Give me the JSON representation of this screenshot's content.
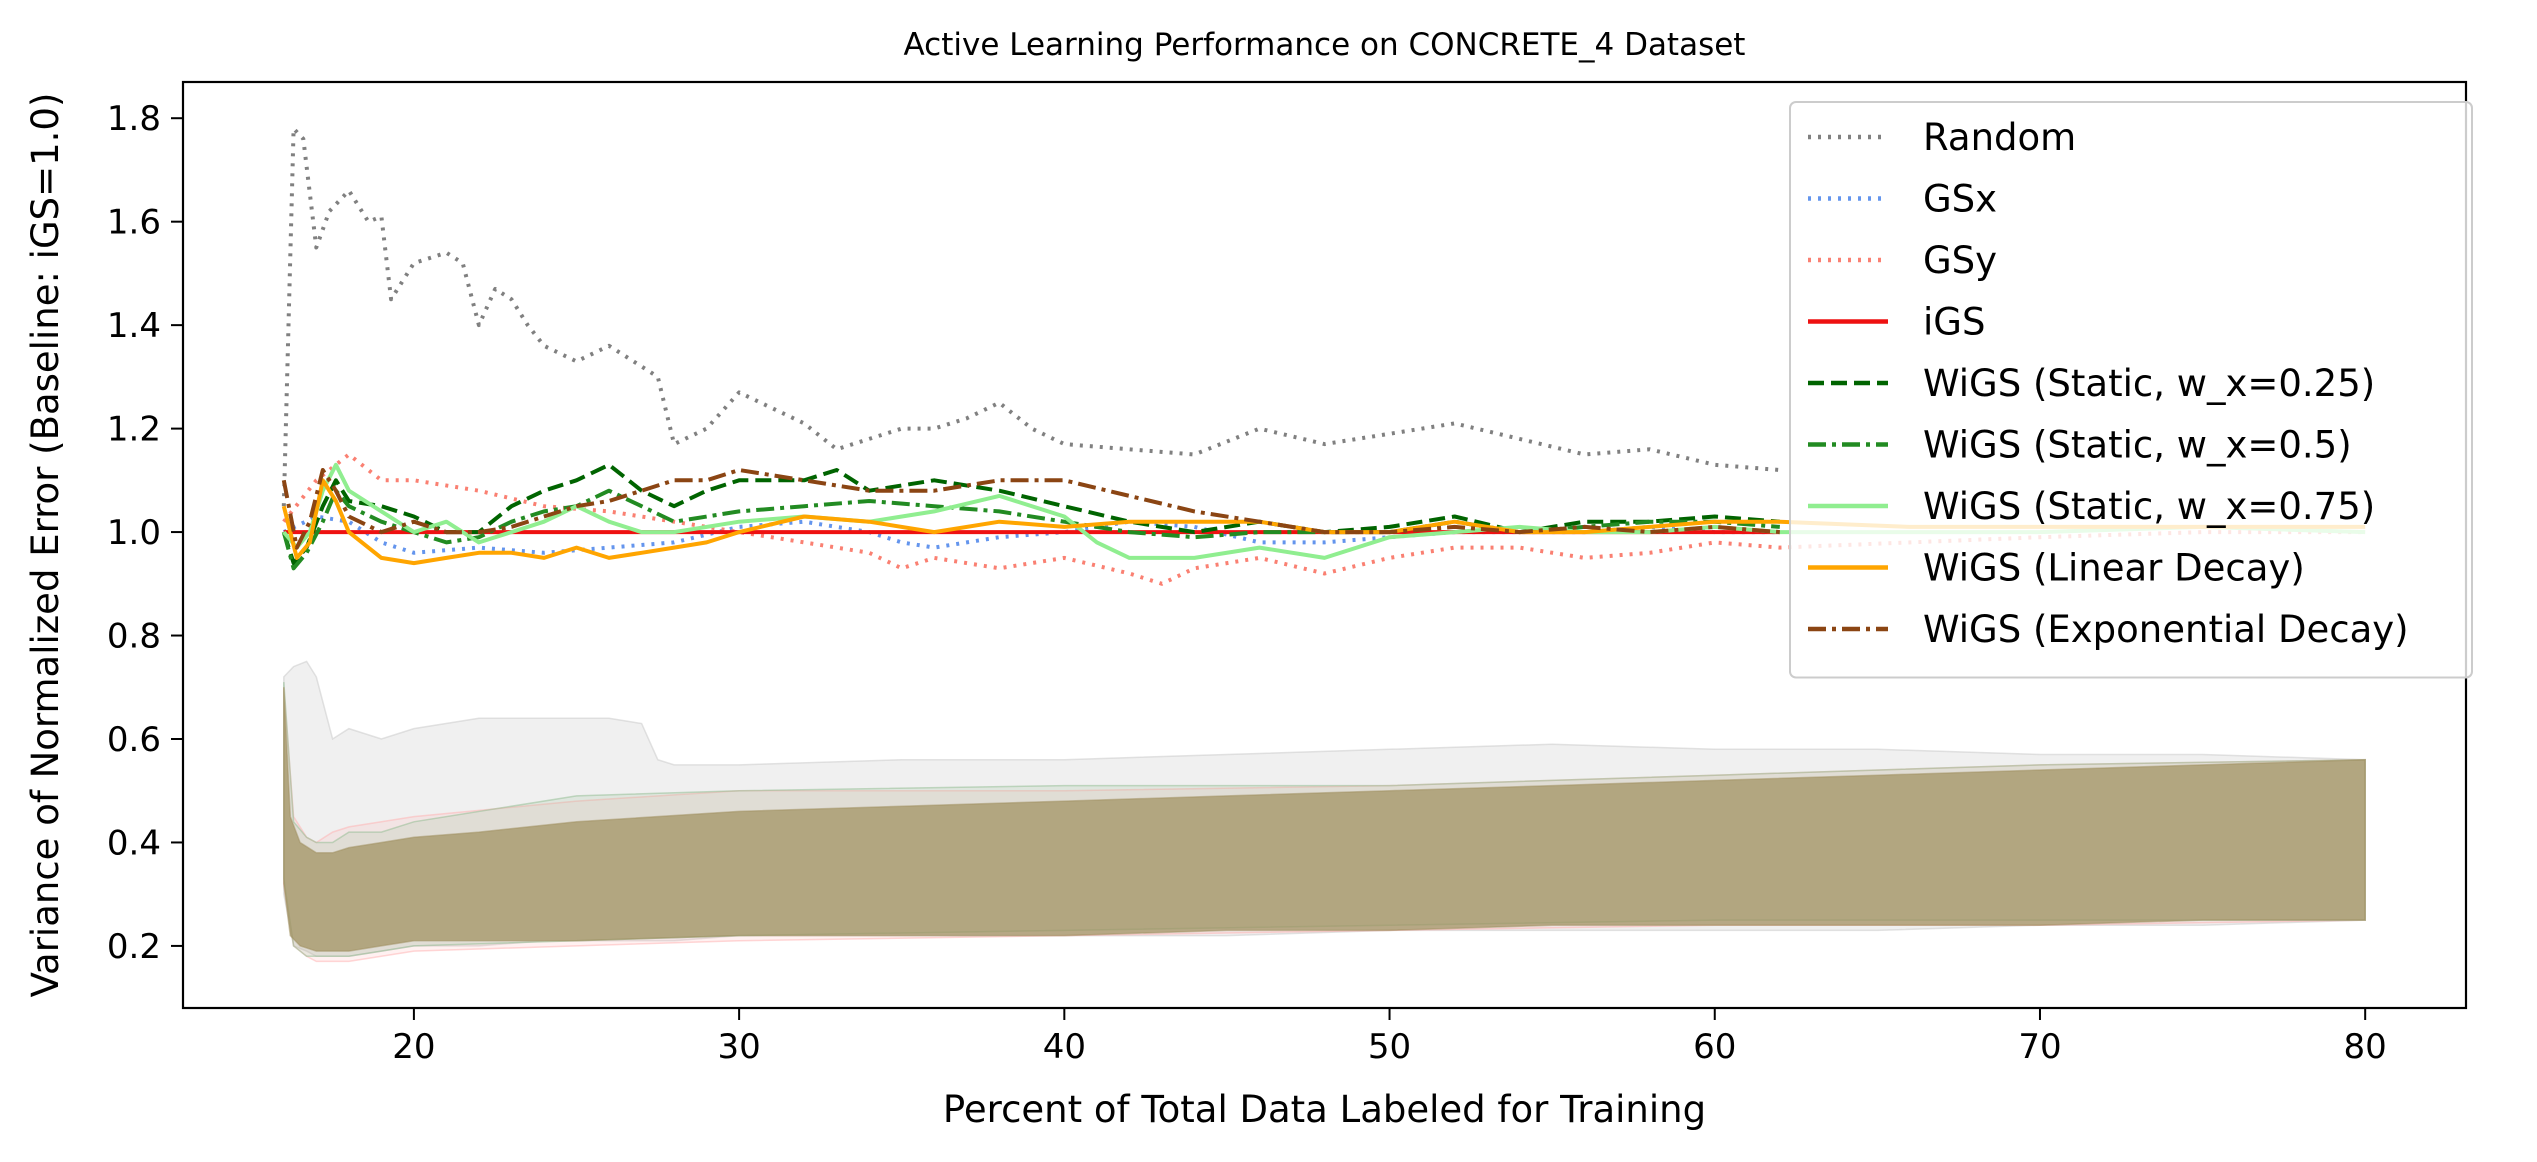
{
  "chart_data": {
    "type": "line",
    "title": "Active Learning Performance on CONCRETE_4 Dataset",
    "xlabel": "Percent of Total Data Labeled for Training",
    "ylabel": "Variance of Normalized Error (Baseline: iGS=1.0)",
    "xlim": [
      12.9,
      83.1
    ],
    "ylim": [
      0.08,
      1.87
    ],
    "xticks": [
      20,
      30,
      40,
      50,
      60,
      70,
      80
    ],
    "yticks": [
      0.2,
      0.4,
      0.6,
      0.8,
      1.0,
      1.2,
      1.4,
      1.6,
      1.8
    ],
    "xtick_labels": [
      "20",
      "30",
      "40",
      "50",
      "60",
      "70",
      "80"
    ],
    "ytick_labels": [
      "0.2",
      "0.4",
      "0.6",
      "0.8",
      "1.0",
      "1.2",
      "1.4",
      "1.6",
      "1.8"
    ],
    "grid": false,
    "legend_position": "top-right",
    "series": [
      {
        "name": "Random",
        "color": "#808080",
        "dash": "dotted",
        "x": [
          16.0,
          16.3,
          16.6,
          17.0,
          17.4,
          18.0,
          18.6,
          19.0,
          19.3,
          20.0,
          21.0,
          21.5,
          22.0,
          22.5,
          23.0,
          23.5,
          24.0,
          25.0,
          26.0,
          27.0,
          27.5,
          28.0,
          29.0,
          30.0,
          31.0,
          32.0,
          33.0,
          34.0,
          35.0,
          36.0,
          37.0,
          38.0,
          39.0,
          40.0,
          42.0,
          44.0,
          46.0,
          48.0,
          50.0,
          52.0,
          54.0,
          56.0,
          58.0,
          60.0,
          62.0
        ],
        "y": [
          1.05,
          1.78,
          1.76,
          1.55,
          1.62,
          1.66,
          1.6,
          1.61,
          1.45,
          1.52,
          1.54,
          1.52,
          1.4,
          1.47,
          1.45,
          1.4,
          1.36,
          1.33,
          1.36,
          1.32,
          1.3,
          1.17,
          1.2,
          1.27,
          1.24,
          1.21,
          1.16,
          1.18,
          1.2,
          1.2,
          1.22,
          1.25,
          1.2,
          1.17,
          1.16,
          1.15,
          1.2,
          1.17,
          1.19,
          1.21,
          1.18,
          1.15,
          1.16,
          1.13,
          1.12
        ]
      },
      {
        "name": "GSx",
        "color": "#6495ed",
        "dash": "dotted",
        "x": [
          16.0,
          17.0,
          18.0,
          19.0,
          20.0,
          22.0,
          24.0,
          26.0,
          28.0,
          30.0,
          32.0,
          34.0,
          35.0,
          36.0,
          38.0,
          40.0,
          42.0,
          44.0,
          46.0,
          48.0,
          50.0,
          52.0,
          54.0,
          56.0,
          58.0,
          60.0,
          62.0
        ],
        "y": [
          1.0,
          1.03,
          1.02,
          0.98,
          0.96,
          0.97,
          0.96,
          0.97,
          0.98,
          1.01,
          1.02,
          1.0,
          0.98,
          0.97,
          0.99,
          1.0,
          1.02,
          1.01,
          0.98,
          0.98,
          0.99,
          1.0,
          1.0,
          1.0,
          1.01,
          1.0,
          1.0
        ]
      },
      {
        "name": "GSy",
        "color": "#fa8072",
        "dash": "dotted",
        "x": [
          16.0,
          17.0,
          18.0,
          19.0,
          20.0,
          22.0,
          24.0,
          26.0,
          28.0,
          30.0,
          32.0,
          34.0,
          35.0,
          36.0,
          38.0,
          40.0,
          42.0,
          43.0,
          44.0,
          46.0,
          48.0,
          50.0,
          52.0,
          54.0,
          56.0,
          58.0,
          60.0,
          62.0,
          66.0,
          70.0,
          75.0,
          80.0
        ],
        "y": [
          1.02,
          1.1,
          1.15,
          1.1,
          1.1,
          1.08,
          1.05,
          1.04,
          1.02,
          1.0,
          0.98,
          0.96,
          0.93,
          0.95,
          0.93,
          0.95,
          0.92,
          0.9,
          0.93,
          0.95,
          0.92,
          0.95,
          0.97,
          0.97,
          0.95,
          0.96,
          0.98,
          0.97,
          0.98,
          0.99,
          1.0,
          1.0
        ]
      },
      {
        "name": "iGS",
        "color": "#ee1111",
        "dash": "solid",
        "x": [
          16.0,
          62.0
        ],
        "y": [
          1.0,
          1.0
        ]
      },
      {
        "name": "WiGS (Static, w_x=0.25)",
        "color": "#006400",
        "dash": "dashed",
        "x": [
          16.0,
          16.3,
          16.7,
          17.2,
          17.6,
          18.0,
          19.0,
          20.0,
          21.0,
          22.0,
          23.0,
          24.0,
          25.0,
          26.0,
          27.0,
          28.0,
          29.0,
          30.0,
          31.0,
          32.0,
          33.0,
          34.0,
          36.0,
          38.0,
          40.0,
          42.0,
          44.0,
          46.0,
          48.0,
          50.0,
          52.0,
          54.0,
          56.0,
          58.0,
          60.0,
          62.0
        ],
        "y": [
          1.0,
          0.94,
          0.97,
          1.05,
          1.1,
          1.06,
          1.05,
          1.03,
          1.0,
          1.0,
          1.05,
          1.08,
          1.1,
          1.13,
          1.08,
          1.05,
          1.08,
          1.1,
          1.1,
          1.1,
          1.12,
          1.08,
          1.1,
          1.08,
          1.05,
          1.02,
          1.0,
          1.02,
          1.0,
          1.01,
          1.03,
          1.0,
          1.02,
          1.02,
          1.03,
          1.02
        ]
      },
      {
        "name": "WiGS (Static, w_x=0.5)",
        "color": "#228b22",
        "dash": "dashdot",
        "x": [
          16.0,
          16.3,
          16.7,
          17.2,
          17.6,
          18.0,
          19.0,
          20.0,
          21.0,
          22.0,
          23.0,
          24.0,
          25.0,
          26.0,
          27.0,
          28.0,
          30.0,
          32.0,
          34.0,
          36.0,
          38.0,
          40.0,
          42.0,
          44.0,
          46.0,
          48.0,
          50.0,
          52.0,
          54.0,
          56.0,
          58.0,
          60.0,
          62.0
        ],
        "y": [
          1.0,
          0.93,
          0.96,
          1.02,
          1.08,
          1.05,
          1.02,
          1.0,
          0.98,
          0.99,
          1.02,
          1.04,
          1.05,
          1.08,
          1.05,
          1.02,
          1.04,
          1.05,
          1.06,
          1.05,
          1.04,
          1.02,
          1.0,
          0.99,
          1.0,
          1.0,
          1.0,
          1.02,
          1.0,
          1.01,
          1.02,
          1.02,
          1.01
        ]
      },
      {
        "name": "WiGS (Static, w_x=0.75)",
        "color": "#90ee90",
        "dash": "solid",
        "x": [
          16.0,
          16.4,
          16.8,
          17.2,
          17.6,
          18.0,
          19.0,
          20.0,
          21.0,
          22.0,
          23.0,
          24.0,
          25.0,
          26.0,
          27.0,
          28.0,
          30.0,
          32.0,
          34.0,
          36.0,
          38.0,
          40.0,
          41.0,
          42.0,
          44.0,
          46.0,
          48.0,
          50.0,
          52.0,
          54.0,
          56.0,
          58.0,
          60.0,
          62.0,
          66.0,
          70.0,
          75.0,
          80.0
        ],
        "y": [
          1.0,
          0.97,
          1.0,
          1.08,
          1.13,
          1.08,
          1.04,
          1.0,
          1.02,
          0.98,
          1.0,
          1.02,
          1.05,
          1.02,
          1.0,
          1.0,
          1.02,
          1.03,
          1.02,
          1.04,
          1.07,
          1.03,
          0.98,
          0.95,
          0.95,
          0.97,
          0.95,
          0.99,
          1.0,
          1.01,
          1.0,
          1.0,
          1.01,
          1.0,
          1.0,
          1.0,
          1.01,
          1.0
        ]
      },
      {
        "name": "WiGS (Linear Decay)",
        "color": "#ffa500",
        "dash": "solid",
        "x": [
          16.0,
          16.4,
          16.8,
          17.2,
          17.6,
          18.0,
          19.0,
          20.0,
          21.0,
          22.0,
          23.0,
          24.0,
          25.0,
          26.0,
          27.0,
          28.0,
          29.0,
          30.0,
          32.0,
          34.0,
          36.0,
          38.0,
          40.0,
          42.0,
          44.0,
          46.0,
          48.0,
          50.0,
          52.0,
          54.0,
          56.0,
          58.0,
          60.0,
          62.0,
          66.0,
          70.0,
          75.0,
          80.0
        ],
        "y": [
          1.05,
          0.95,
          0.98,
          1.1,
          1.06,
          1.0,
          0.95,
          0.94,
          0.95,
          0.96,
          0.96,
          0.95,
          0.97,
          0.95,
          0.96,
          0.97,
          0.98,
          1.0,
          1.03,
          1.02,
          1.0,
          1.02,
          1.01,
          1.02,
          1.02,
          1.02,
          1.0,
          1.0,
          1.02,
          1.0,
          1.0,
          1.01,
          1.02,
          1.02,
          1.01,
          1.01,
          1.01,
          1.01
        ]
      },
      {
        "name": "WiGS (Exponential Decay)",
        "color": "#8b4513",
        "dash": "dashdot",
        "x": [
          16.0,
          16.4,
          16.8,
          17.2,
          17.6,
          18.0,
          19.0,
          20.0,
          21.0,
          22.0,
          23.0,
          24.0,
          25.0,
          26.0,
          27.0,
          28.0,
          29.0,
          30.0,
          32.0,
          34.0,
          36.0,
          38.0,
          40.0,
          42.0,
          44.0,
          46.0,
          48.0,
          50.0,
          52.0,
          54.0,
          56.0,
          58.0,
          60.0,
          62.0
        ],
        "y": [
          1.1,
          0.97,
          1.02,
          1.12,
          1.08,
          1.03,
          1.0,
          1.02,
          1.0,
          1.0,
          1.01,
          1.03,
          1.05,
          1.06,
          1.08,
          1.1,
          1.1,
          1.12,
          1.1,
          1.08,
          1.08,
          1.1,
          1.1,
          1.07,
          1.04,
          1.02,
          1.0,
          1.0,
          1.01,
          1.0,
          1.01,
          1.0,
          1.01,
          1.0
        ]
      }
    ],
    "bands": [
      {
        "color": "#c8c8c8",
        "opacity": 0.28,
        "x": [
          16.0,
          16.3,
          16.7,
          17.0,
          17.5,
          18.0,
          19.0,
          20.0,
          22.0,
          24.0,
          26.0,
          27.0,
          27.5,
          28.0,
          30.0,
          35.0,
          40.0,
          45.0,
          50.0,
          55.0,
          60.0,
          65.0,
          70.0,
          75.0,
          80.0
        ],
        "upper": [
          0.72,
          0.74,
          0.75,
          0.72,
          0.6,
          0.62,
          0.6,
          0.62,
          0.64,
          0.64,
          0.64,
          0.63,
          0.56,
          0.55,
          0.55,
          0.56,
          0.56,
          0.57,
          0.58,
          0.59,
          0.58,
          0.58,
          0.57,
          0.57,
          0.56
        ],
        "lower": [
          0.3,
          0.2,
          0.19,
          0.18,
          0.18,
          0.18,
          0.19,
          0.2,
          0.2,
          0.21,
          0.21,
          0.21,
          0.21,
          0.21,
          0.22,
          0.22,
          0.22,
          0.22,
          0.23,
          0.23,
          0.23,
          0.23,
          0.24,
          0.24,
          0.25
        ]
      },
      {
        "color": "#ffb0b0",
        "opacity": 0.18,
        "x": [
          16.0,
          16.3,
          16.7,
          17.0,
          17.5,
          18.0,
          19.0,
          20.0,
          25.0,
          30.0,
          40.0,
          50.0,
          60.0,
          70.0,
          80.0
        ],
        "upper": [
          0.7,
          0.45,
          0.41,
          0.4,
          0.42,
          0.43,
          0.44,
          0.45,
          0.48,
          0.5,
          0.5,
          0.51,
          0.53,
          0.55,
          0.56
        ],
        "lower": [
          0.32,
          0.2,
          0.18,
          0.17,
          0.17,
          0.17,
          0.18,
          0.19,
          0.2,
          0.21,
          0.22,
          0.23,
          0.24,
          0.24,
          0.25
        ]
      },
      {
        "color": "#8fbc8f",
        "opacity": 0.18,
        "x": [
          16.0,
          16.3,
          16.7,
          17.0,
          17.5,
          18.0,
          19.0,
          20.0,
          25.0,
          30.0,
          40.0,
          50.0,
          60.0,
          70.0,
          80.0
        ],
        "upper": [
          0.71,
          0.44,
          0.41,
          0.4,
          0.4,
          0.42,
          0.42,
          0.44,
          0.49,
          0.5,
          0.51,
          0.51,
          0.53,
          0.55,
          0.56
        ],
        "lower": [
          0.33,
          0.2,
          0.18,
          0.18,
          0.18,
          0.18,
          0.19,
          0.2,
          0.21,
          0.22,
          0.23,
          0.24,
          0.25,
          0.25,
          0.25
        ]
      },
      {
        "color": "#a09060",
        "opacity": 0.72,
        "x": [
          16.0,
          16.2,
          16.5,
          17.0,
          17.5,
          18.0,
          19.0,
          20.0,
          22.0,
          25.0,
          30.0,
          35.0,
          40.0,
          45.0,
          50.0,
          55.0,
          60.0,
          65.0,
          70.0,
          75.0,
          80.0
        ],
        "upper": [
          0.7,
          0.45,
          0.4,
          0.38,
          0.38,
          0.39,
          0.4,
          0.41,
          0.42,
          0.44,
          0.46,
          0.47,
          0.48,
          0.49,
          0.5,
          0.51,
          0.52,
          0.53,
          0.54,
          0.55,
          0.56
        ],
        "lower": [
          0.32,
          0.22,
          0.2,
          0.19,
          0.19,
          0.19,
          0.2,
          0.21,
          0.21,
          0.21,
          0.22,
          0.22,
          0.22,
          0.23,
          0.23,
          0.24,
          0.24,
          0.24,
          0.24,
          0.25,
          0.25
        ]
      }
    ]
  }
}
